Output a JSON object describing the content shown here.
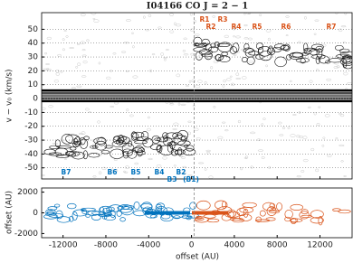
{
  "chart_data": [
    {
      "type": "contour",
      "title": "I04166 CO J = 2 − 1",
      "ylabel": "v − v₀ (km/s)",
      "xlim": [
        -14000,
        15000
      ],
      "ylim": [
        -58,
        62
      ],
      "xticks": [
        -12000,
        -8000,
        -4000,
        0,
        4000,
        8000,
        12000
      ],
      "yticks": [
        -50,
        -40,
        -30,
        -20,
        -10,
        0,
        10,
        20,
        30,
        40,
        50
      ],
      "grid": true,
      "annotations": [
        {
          "text": "R1",
          "color": "#d95319"
        },
        {
          "text": "R2",
          "color": "#d95319"
        },
        {
          "text": "R3",
          "color": "#d95319"
        },
        {
          "text": "R4",
          "color": "#d95319"
        },
        {
          "text": "R5",
          "color": "#d95319"
        },
        {
          "text": "R6",
          "color": "#d95319"
        },
        {
          "text": "R7",
          "color": "#d95319"
        },
        {
          "text": "B7",
          "color": "#0072bd"
        },
        {
          "text": "B6",
          "color": "#0072bd"
        },
        {
          "text": "B5",
          "color": "#0072bd"
        },
        {
          "text": "B4",
          "color": "#0072bd"
        },
        {
          "text": "B3",
          "color": "#0072bd"
        },
        {
          "text": "B2",
          "color": "#0072bd"
        },
        {
          "text": "(B1)",
          "color": "#0072bd"
        }
      ]
    },
    {
      "type": "contour",
      "ylabel": "offset (AU)",
      "xlabel": "offset (AU)",
      "xlim": [
        -14000,
        15000
      ],
      "ylim": [
        -2400,
        2400
      ],
      "xticks": [
        -12000,
        -8000,
        -4000,
        0,
        4000,
        8000,
        12000
      ],
      "yticks": [
        -2000,
        0,
        2000
      ]
    }
  ]
}
